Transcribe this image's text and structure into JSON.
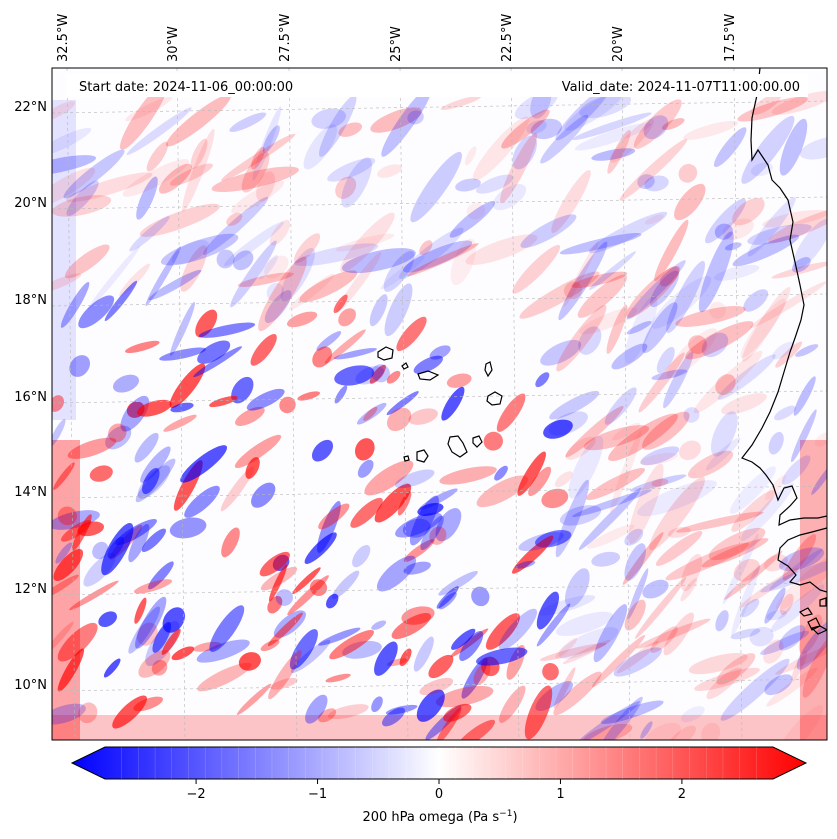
{
  "map": {
    "start_date": "Start date: 2024-11-06_00:00:00",
    "valid_date": "Valid_date: 2024-11-07T11:00:00.00",
    "lon_labels": [
      "32.5°W",
      "30°W",
      "27.5°W",
      "25°W",
      "22.5°W",
      "20°W",
      "17.5°W"
    ],
    "lat_labels": [
      "22°N",
      "20°N",
      "18°N",
      "16°N",
      "14°N",
      "12°N",
      "10°N"
    ],
    "field": "200 hPa omega",
    "diverging_colors": {
      "negative": "#0000ff",
      "zero": "#ffffff",
      "positive": "#ff0000"
    },
    "coastline_color": "#000000"
  },
  "colorbar": {
    "label_prefix": "200 hPa omega (Pa s",
    "label_exp": "−1",
    "label_suffix": ")",
    "range": [
      -2.75,
      2.75
    ],
    "ticks": [
      {
        "value": -2,
        "label": "−2"
      },
      {
        "value": -1,
        "label": "−1"
      },
      {
        "value": 0,
        "label": "0"
      },
      {
        "value": 1,
        "label": "1"
      },
      {
        "value": 2,
        "label": "2"
      }
    ],
    "levels": 40,
    "extend": "both"
  }
}
